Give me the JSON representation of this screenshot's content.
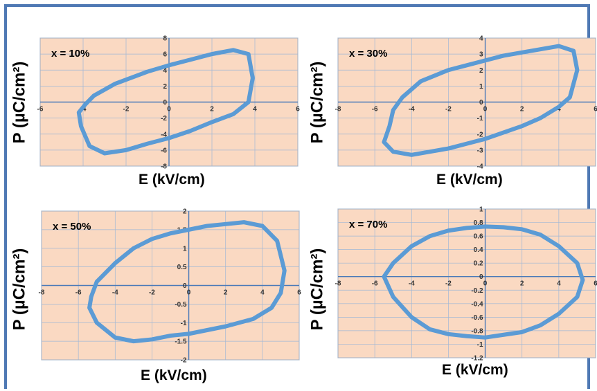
{
  "chart_data": [
    {
      "type": "line",
      "panel_label": "x = 10%",
      "xlabel": "E (kV/cm)",
      "ylabel": "P (µC/cm²)",
      "xlim": [
        -6,
        6
      ],
      "ylim": [
        -8,
        8
      ],
      "xticks": [
        -6,
        -4,
        -2,
        0,
        2,
        4,
        6
      ],
      "yticks": [
        -8,
        -6,
        -4,
        -2,
        0,
        2,
        4,
        6,
        8
      ],
      "ytick_labels": [
        "-8",
        "-6",
        "-4",
        "-2",
        "0",
        "2",
        "4",
        "6",
        "8"
      ],
      "series": [
        {
          "x": [
            -3.9,
            -3.5,
            -2.5,
            -1,
            0,
            1,
            2,
            3,
            3.7,
            3.9,
            3.7,
            3,
            2,
            1,
            0,
            -1,
            -2,
            -3,
            -3.7,
            -4.1,
            -4.2,
            -3.9
          ],
          "y": [
            -0.3,
            0.8,
            2.3,
            3.8,
            4.6,
            5.3,
            6,
            6.5,
            6,
            3,
            0,
            -1.5,
            -2.5,
            -3.6,
            -4.5,
            -5.2,
            -6,
            -6.4,
            -5.5,
            -3,
            -1.3,
            -0.3
          ]
        }
      ],
      "grid": true,
      "color": "#5b9bd5",
      "background": "#fad9c2"
    },
    {
      "type": "line",
      "panel_label": "x = 30%",
      "xlabel": "E (kV/cm)",
      "ylabel": "P (µC/cm²)",
      "xlim": [
        -8,
        6
      ],
      "ylim": [
        -4,
        4
      ],
      "xticks": [
        -8,
        -6,
        -4,
        -2,
        0,
        2,
        4,
        6
      ],
      "yticks": [
        -4,
        -3,
        -2,
        -1,
        0,
        1,
        2,
        3,
        4
      ],
      "ytick_labels": [
        "-4",
        "-3",
        "-2",
        "-1",
        "0",
        "1",
        "2",
        "3",
        "4"
      ],
      "series": [
        {
          "x": [
            -5,
            -4.5,
            -3.5,
            -2,
            -1,
            0,
            1,
            2,
            3,
            4,
            4.8,
            5,
            4.6,
            4,
            3,
            2,
            1,
            0,
            -1,
            -2,
            -3,
            -4,
            -5,
            -5.5,
            -5.2,
            -5
          ],
          "y": [
            -0.5,
            0.3,
            1.3,
            2,
            2.3,
            2.6,
            2.9,
            3.1,
            3.3,
            3.5,
            3.2,
            2,
            0.3,
            -0.3,
            -1,
            -1.5,
            -1.9,
            -2.3,
            -2.6,
            -2.9,
            -3.1,
            -3.3,
            -3.1,
            -2.5,
            -1.5,
            -0.5
          ]
        }
      ],
      "grid": true,
      "color": "#5b9bd5",
      "background": "#fad9c2"
    },
    {
      "type": "line",
      "panel_label": "x = 50%",
      "xlabel": "E (kV/cm)",
      "ylabel": "P (µC/cm²)",
      "xlim": [
        -8,
        6
      ],
      "ylim": [
        -2,
        2
      ],
      "xticks": [
        -8,
        -6,
        -4,
        -2,
        0,
        2,
        4,
        6
      ],
      "yticks": [
        -2,
        -1.5,
        -1,
        -0.5,
        0,
        0.5,
        1,
        1.5,
        2
      ],
      "ytick_labels": [
        "-2",
        "-1.5",
        "-1",
        "-0.5",
        "0",
        "0.5",
        "1",
        "1.5",
        "2"
      ],
      "series": [
        {
          "x": [
            -5.3,
            -5,
            -4,
            -3,
            -2,
            -1,
            0,
            1,
            2,
            3,
            4,
            4.8,
            5.2,
            5,
            4.5,
            3.5,
            2,
            0,
            -1,
            -2,
            -3,
            -4,
            -5,
            -5.4,
            -5.3
          ],
          "y": [
            -0.3,
            0.1,
            0.6,
            1,
            1.25,
            1.4,
            1.5,
            1.6,
            1.65,
            1.7,
            1.6,
            1.2,
            0.4,
            -0.2,
            -0.6,
            -0.9,
            -1.1,
            -1.3,
            -1.35,
            -1.45,
            -1.5,
            -1.4,
            -1,
            -0.6,
            -0.3
          ]
        }
      ],
      "grid": true,
      "color": "#5b9bd5",
      "background": "#fad9c2"
    },
    {
      "type": "line",
      "panel_label": "x = 70%",
      "xlabel": "E (kV/cm)",
      "ylabel": "P (µC/cm²)",
      "xlim": [
        -8,
        6
      ],
      "ylim": [
        -1.2,
        1
      ],
      "xticks": [
        -8,
        -6,
        -4,
        -2,
        0,
        2,
        4,
        6
      ],
      "yticks": [
        -1.2,
        -1,
        -0.8,
        -0.6,
        -0.4,
        -0.2,
        0,
        0.2,
        0.4,
        0.6,
        0.8,
        1
      ],
      "ytick_labels": [
        "-1.2",
        "-1",
        "-0.8",
        "-0.6",
        "-0.4",
        "-0.2",
        "0",
        "0.2",
        "0.4",
        "0.6",
        "0.8",
        "1"
      ],
      "series": [
        {
          "x": [
            -5.5,
            -5,
            -4,
            -3,
            -2,
            -1,
            0,
            1,
            2,
            3,
            4,
            5,
            5.3,
            5,
            4,
            3,
            2,
            1,
            0,
            -1,
            -2,
            -3,
            -4,
            -5,
            -5.5
          ],
          "y": [
            0,
            0.2,
            0.45,
            0.6,
            0.68,
            0.72,
            0.74,
            0.73,
            0.7,
            0.62,
            0.45,
            0.2,
            -0.05,
            -0.3,
            -0.55,
            -0.72,
            -0.82,
            -0.86,
            -0.9,
            -0.88,
            -0.85,
            -0.78,
            -0.6,
            -0.3,
            0
          ]
        }
      ],
      "grid": true,
      "color": "#5b9bd5",
      "background": "#fad9c2"
    }
  ]
}
